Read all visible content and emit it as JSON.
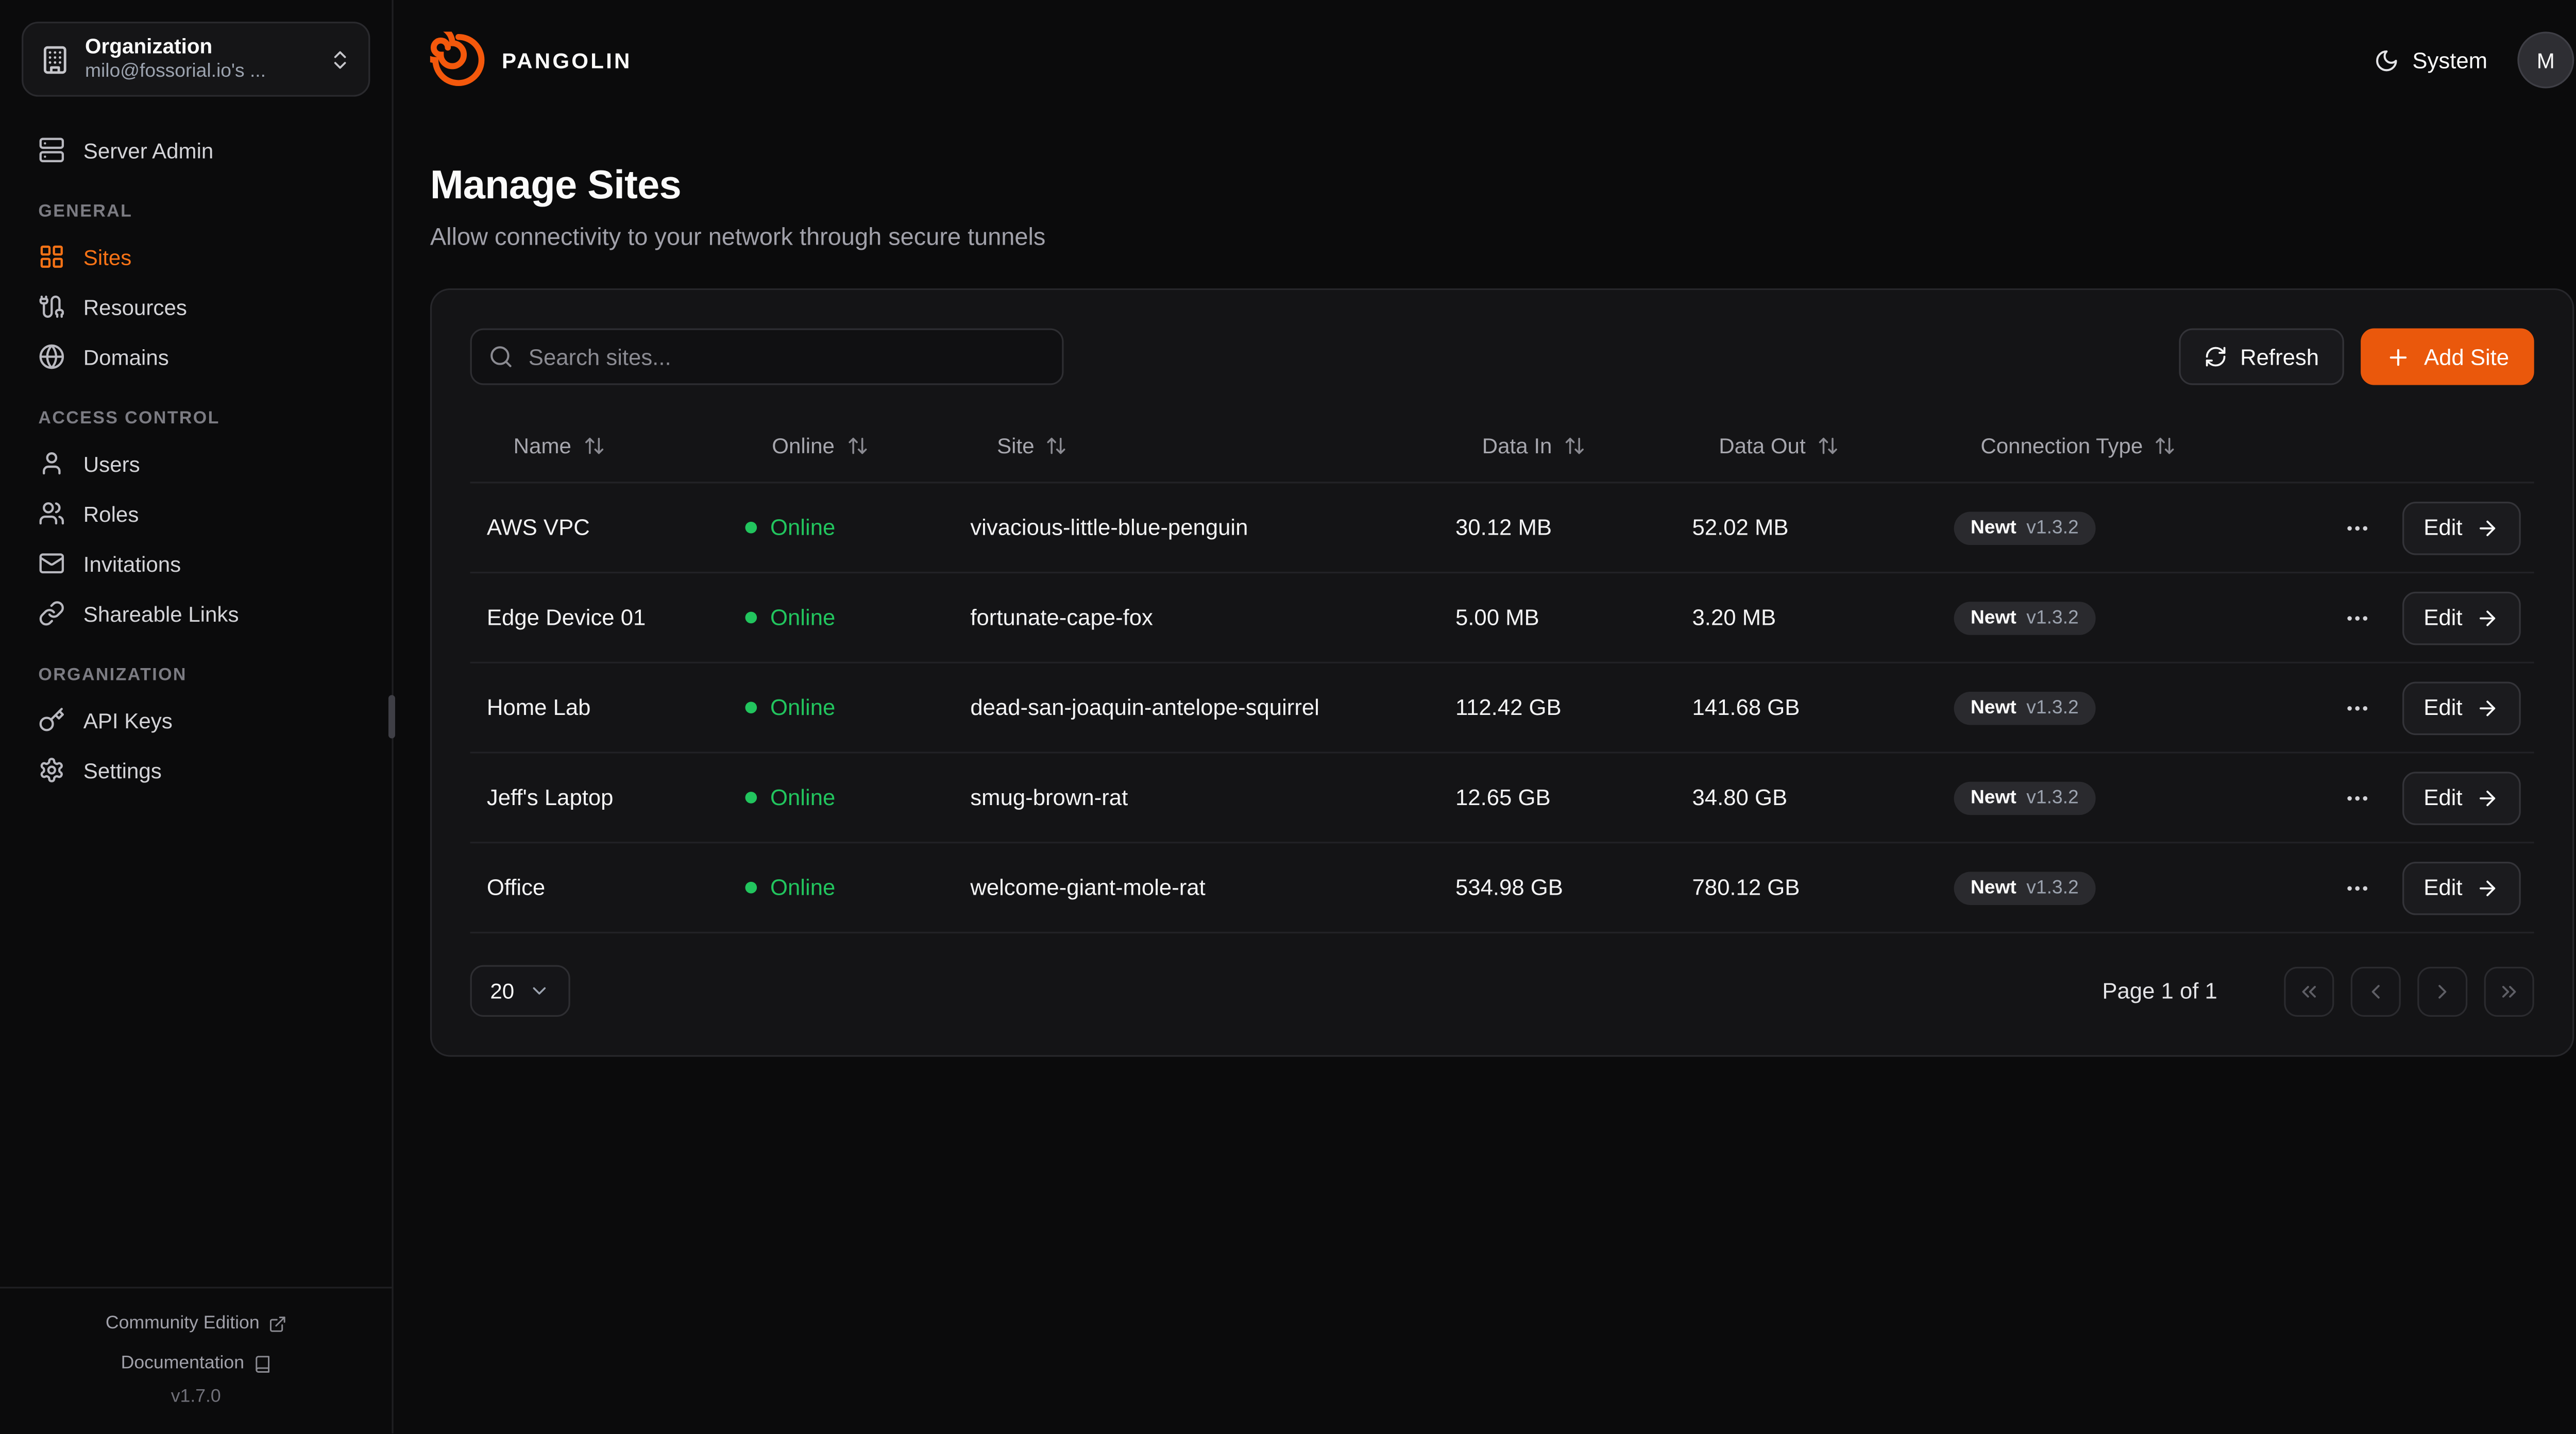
{
  "colors": {
    "accent": "#f97316",
    "brand_logo": "#f4580c",
    "add_button": "#ea580c",
    "online": "#22c55e"
  },
  "sidebar": {
    "org_selector": {
      "title": "Organization",
      "subtitle": "milo@fossorial.io's ...",
      "icon": "building"
    },
    "server_admin": {
      "label": "Server Admin",
      "icon": "server"
    },
    "sections": [
      {
        "heading": "GENERAL",
        "items": [
          {
            "label": "Sites",
            "icon": "grid",
            "active": true
          },
          {
            "label": "Resources",
            "icon": "cable",
            "active": false
          },
          {
            "label": "Domains",
            "icon": "globe",
            "active": false
          }
        ]
      },
      {
        "heading": "ACCESS CONTROL",
        "items": [
          {
            "label": "Users",
            "icon": "user",
            "active": false
          },
          {
            "label": "Roles",
            "icon": "users",
            "active": false
          },
          {
            "label": "Invitations",
            "icon": "mail",
            "active": false
          },
          {
            "label": "Shareable Links",
            "icon": "link",
            "active": false
          }
        ]
      },
      {
        "heading": "ORGANIZATION",
        "items": [
          {
            "label": "API Keys",
            "icon": "key",
            "active": false
          },
          {
            "label": "Settings",
            "icon": "settings",
            "active": false
          }
        ]
      }
    ],
    "footer": {
      "community": "Community Edition",
      "documentation": "Documentation",
      "version": "v1.7.0"
    }
  },
  "topbar": {
    "brand": "PANGOLIN",
    "theme_label": "System",
    "avatar_initial": "M"
  },
  "page": {
    "title": "Manage Sites",
    "subtitle": "Allow connectivity to your network through secure tunnels"
  },
  "toolbar": {
    "search_placeholder": "Search sites...",
    "refresh_label": "Refresh",
    "add_site_label": "Add Site"
  },
  "table": {
    "columns": [
      "Name",
      "Online",
      "Site",
      "Data In",
      "Data Out",
      "Connection Type"
    ],
    "edit_label": "Edit",
    "rows": [
      {
        "name": "AWS VPC",
        "status": "Online",
        "site": "vivacious-little-blue-penguin",
        "data_in": "30.12 MB",
        "data_out": "52.02 MB",
        "conn_name": "Newt",
        "conn_version": "v1.3.2"
      },
      {
        "name": "Edge Device 01",
        "status": "Online",
        "site": "fortunate-cape-fox",
        "data_in": "5.00 MB",
        "data_out": "3.20 MB",
        "conn_name": "Newt",
        "conn_version": "v1.3.2"
      },
      {
        "name": "Home Lab",
        "status": "Online",
        "site": "dead-san-joaquin-antelope-squirrel",
        "data_in": "112.42 GB",
        "data_out": "141.68 GB",
        "conn_name": "Newt",
        "conn_version": "v1.3.2"
      },
      {
        "name": "Jeff's Laptop",
        "status": "Online",
        "site": "smug-brown-rat",
        "data_in": "12.65 GB",
        "data_out": "34.80 GB",
        "conn_name": "Newt",
        "conn_version": "v1.3.2"
      },
      {
        "name": "Office",
        "status": "Online",
        "site": "welcome-giant-mole-rat",
        "data_in": "534.98 GB",
        "data_out": "780.12 GB",
        "conn_name": "Newt",
        "conn_version": "v1.3.2"
      }
    ]
  },
  "pagination": {
    "page_size": "20",
    "page_info": "Page 1 of 1"
  }
}
